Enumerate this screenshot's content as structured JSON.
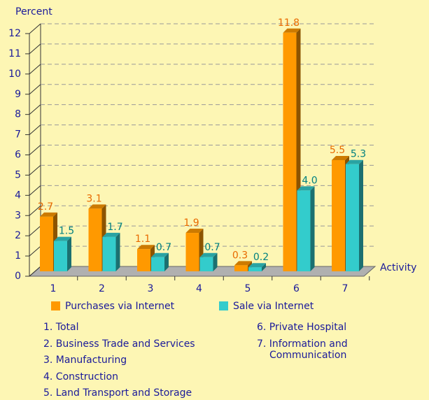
{
  "chart_data": {
    "type": "bar",
    "ylabel": "Percent",
    "xlabel": "Activity",
    "categories": [
      "1",
      "2",
      "3",
      "4",
      "5",
      "6",
      "7"
    ],
    "series": [
      {
        "name": "Purchases via Internet",
        "color": "#ff9900",
        "values": [
          2.7,
          3.1,
          1.1,
          1.9,
          0.3,
          11.8,
          5.5
        ],
        "value_labels": [
          "2.7",
          "3.1",
          "1.1",
          "1.9",
          "0.3",
          "11.8",
          "5.5"
        ]
      },
      {
        "name": "Sale via Internet",
        "color": "#33cccc",
        "values": [
          1.5,
          1.7,
          0.7,
          0.7,
          0.2,
          4.0,
          5.3
        ],
        "value_labels": [
          "1.5",
          "1.7",
          "0.7",
          "0.7",
          "0.2",
          "4.0",
          "5.3"
        ]
      }
    ],
    "ylim": [
      0,
      12
    ],
    "yticks": [
      0,
      1,
      2,
      3,
      4,
      5,
      6,
      7,
      8,
      9,
      10,
      11,
      12
    ],
    "grid": true,
    "notes": [
      "1. Total",
      "2. Business Trade and Services",
      "3. Manufacturing",
      "4. Construction",
      "5. Land Transport and Storage",
      "6. Private Hospital",
      "7. Information and Communication"
    ]
  }
}
